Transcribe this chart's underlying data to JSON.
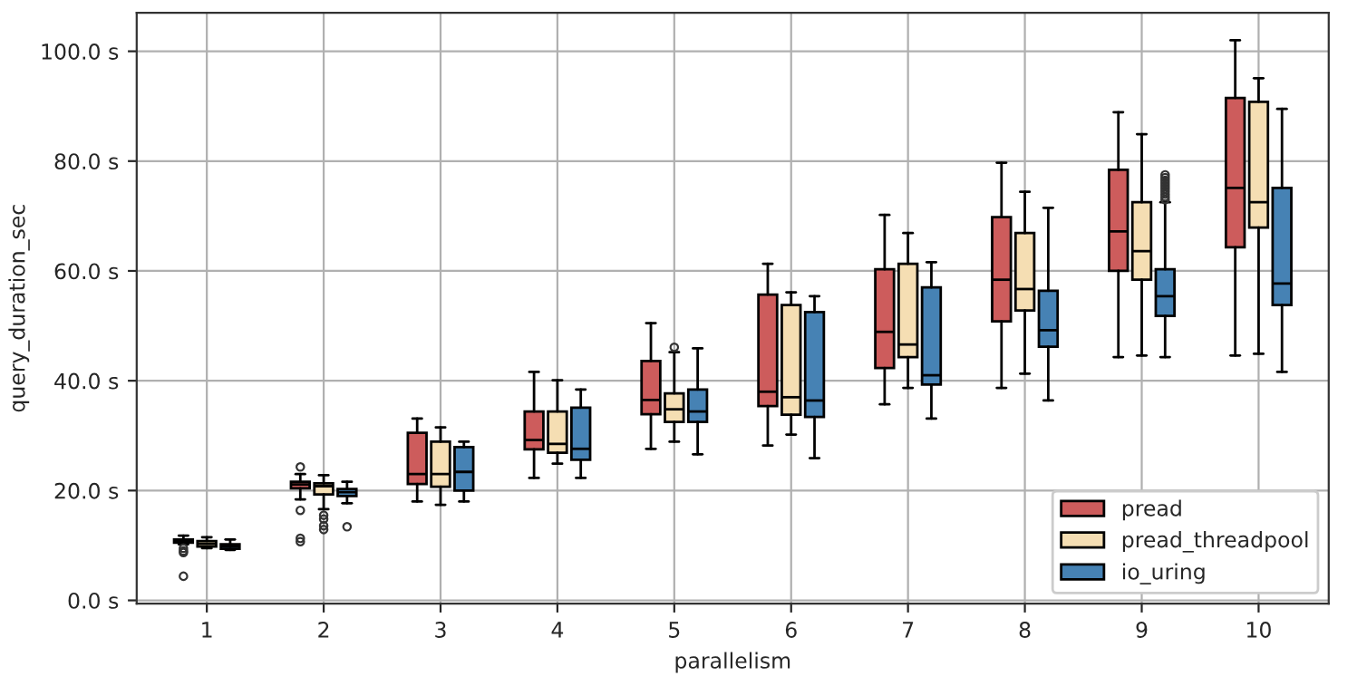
{
  "chart_data": {
    "type": "box",
    "xlabel": "parallelism",
    "ylabel": "query_duration_sec",
    "categories": [
      "1",
      "2",
      "3",
      "4",
      "5",
      "6",
      "7",
      "8",
      "9",
      "10"
    ],
    "ylim": [
      -0.6,
      107
    ],
    "yticks": [
      {
        "value": 0,
        "label": "0.0 s"
      },
      {
        "value": 20,
        "label": "20.0 s"
      },
      {
        "value": 40,
        "label": "40.0 s"
      },
      {
        "value": 60,
        "label": "60.0 s"
      },
      {
        "value": 80,
        "label": "80.0 s"
      },
      {
        "value": 100,
        "label": "100.0 s"
      }
    ],
    "grid": true,
    "legend": "bottom right",
    "series": [
      {
        "name": "pread",
        "color": "#cd5c5c",
        "boxes": [
          {
            "low": 10.2,
            "q1": 10.5,
            "median": 10.8,
            "q3": 11.1,
            "high": 11.8,
            "outliers": [
              9.5,
              9.0,
              8.7,
              4.4
            ]
          },
          {
            "low": 18.4,
            "q1": 20.4,
            "median": 21.1,
            "q3": 21.6,
            "high": 23.0,
            "outliers": [
              24.3,
              16.4,
              11.3,
              10.7
            ]
          },
          {
            "low": 18.0,
            "q1": 21.2,
            "median": 23.0,
            "q3": 30.5,
            "high": 33.1
          },
          {
            "low": 22.3,
            "q1": 27.5,
            "median": 29.2,
            "q3": 34.4,
            "high": 41.6
          },
          {
            "low": 27.6,
            "q1": 33.9,
            "median": 36.5,
            "q3": 43.6,
            "high": 50.5
          },
          {
            "low": 28.2,
            "q1": 35.4,
            "median": 38.0,
            "q3": 55.7,
            "high": 61.3
          },
          {
            "low": 35.7,
            "q1": 42.3,
            "median": 48.9,
            "q3": 60.3,
            "high": 70.2
          },
          {
            "low": 38.7,
            "q1": 50.8,
            "median": 58.4,
            "q3": 69.8,
            "high": 79.7
          },
          {
            "low": 44.3,
            "q1": 60.0,
            "median": 67.2,
            "q3": 78.4,
            "high": 88.9
          },
          {
            "low": 44.6,
            "q1": 64.3,
            "median": 75.1,
            "q3": 91.5,
            "high": 102.0
          }
        ]
      },
      {
        "name": "pread_threadpool",
        "color": "#f5deb3",
        "boxes": [
          {
            "low": 9.5,
            "q1": 9.8,
            "median": 10.3,
            "q3": 10.8,
            "high": 11.5
          },
          {
            "low": 16.6,
            "q1": 19.3,
            "median": 20.8,
            "q3": 21.3,
            "high": 22.8,
            "outliers": [
              15.5,
              14.8,
              13.6,
              12.9
            ]
          },
          {
            "low": 17.4,
            "q1": 20.7,
            "median": 23.0,
            "q3": 28.9,
            "high": 31.5
          },
          {
            "low": 24.9,
            "q1": 26.9,
            "median": 28.5,
            "q3": 34.4,
            "high": 40.1
          },
          {
            "low": 28.9,
            "q1": 32.5,
            "median": 34.8,
            "q3": 37.7,
            "high": 45.2,
            "outliers": [
              46.1
            ]
          },
          {
            "low": 30.2,
            "q1": 33.8,
            "median": 37.0,
            "q3": 53.8,
            "high": 56.1
          },
          {
            "low": 38.7,
            "q1": 44.3,
            "median": 46.6,
            "q3": 61.3,
            "high": 66.9
          },
          {
            "low": 41.3,
            "q1": 52.8,
            "median": 56.7,
            "q3": 66.9,
            "high": 74.4
          },
          {
            "low": 44.6,
            "q1": 58.4,
            "median": 63.6,
            "q3": 72.5,
            "high": 84.9
          },
          {
            "low": 44.9,
            "q1": 67.9,
            "median": 72.5,
            "q3": 90.8,
            "high": 95.1
          }
        ]
      },
      {
        "name": "io_uring",
        "color": "#4682b4",
        "boxes": [
          {
            "low": 9.2,
            "q1": 9.4,
            "median": 9.8,
            "q3": 10.2,
            "high": 11.1
          },
          {
            "low": 17.7,
            "q1": 19.0,
            "median": 19.7,
            "q3": 20.3,
            "high": 21.6,
            "outliers": [
              13.4
            ]
          },
          {
            "low": 18.0,
            "q1": 20.0,
            "median": 23.4,
            "q3": 27.9,
            "high": 28.9
          },
          {
            "low": 22.3,
            "q1": 25.6,
            "median": 27.6,
            "q3": 35.1,
            "high": 38.4
          },
          {
            "low": 26.6,
            "q1": 32.5,
            "median": 34.4,
            "q3": 38.4,
            "high": 45.9
          },
          {
            "low": 25.9,
            "q1": 33.4,
            "median": 36.4,
            "q3": 52.5,
            "high": 55.4
          },
          {
            "low": 33.1,
            "q1": 39.3,
            "median": 41.0,
            "q3": 57.0,
            "high": 61.6
          },
          {
            "low": 36.4,
            "q1": 46.2,
            "median": 49.2,
            "q3": 56.4,
            "high": 71.5
          },
          {
            "low": 44.3,
            "q1": 51.8,
            "median": 55.4,
            "q3": 60.3,
            "high": 72.5,
            "outliers": [
              73.0,
              73.5,
              74.0,
              74.5,
              75.0,
              75.5,
              76.0,
              76.5,
              77.0,
              77.5
            ]
          },
          {
            "low": 41.6,
            "q1": 53.8,
            "median": 57.7,
            "q3": 75.1,
            "high": 89.5
          }
        ]
      }
    ]
  }
}
